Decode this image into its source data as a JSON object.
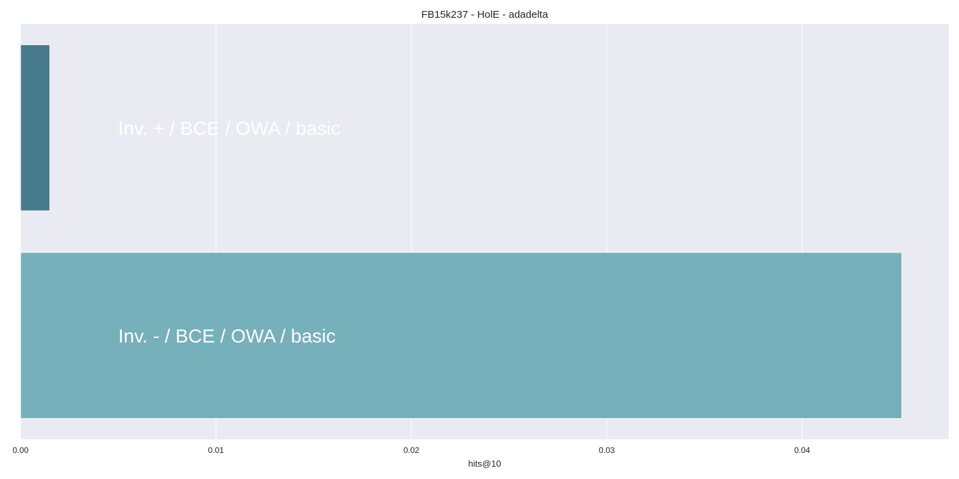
{
  "chart_data": {
    "type": "bar",
    "orientation": "horizontal",
    "title": "FB15k237 - HolE - adadelta",
    "xlabel": "hits@10",
    "ylabel": "",
    "xlim": [
      0,
      0.0475
    ],
    "xticks": [
      0.0,
      0.01,
      0.02,
      0.03,
      0.04
    ],
    "xtick_labels": [
      "0.00",
      "0.01",
      "0.02",
      "0.03",
      "0.04"
    ],
    "grid": true,
    "categories": [
      "Inv. + / BCE / OWA / basic",
      "Inv. - / BCE / OWA / basic"
    ],
    "values": [
      0.0015,
      0.0451
    ],
    "colors": [
      "#477a8d",
      "#76b0ba"
    ],
    "background": "#eaeaf2"
  }
}
